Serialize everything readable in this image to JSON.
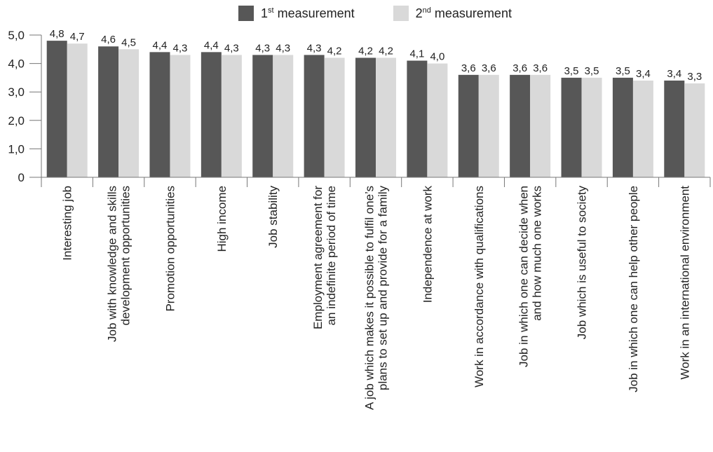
{
  "chart_data": {
    "type": "bar",
    "categories": [
      [
        "Interesting job"
      ],
      [
        "Job with knowledge and skills",
        "development opportunities"
      ],
      [
        "Promotion opportunities"
      ],
      [
        "High income"
      ],
      [
        "Job stability"
      ],
      [
        "Employment agreement for",
        "an indefinite period of time"
      ],
      [
        "A job which makes it possible to fulfil one’s",
        "plans to set up and provide for a family"
      ],
      [
        "Independence at work"
      ],
      [
        "Work in accordance with qualifications"
      ],
      [
        "Job in which one can decide when",
        "and how much one works"
      ],
      [
        "Job which is useful to society"
      ],
      [
        "Job in which one can help other people"
      ],
      [
        "Work in an international environment"
      ]
    ],
    "series": [
      {
        "name_parts": [
          "1",
          "st",
          " measurement"
        ],
        "color": "#575757",
        "values": [
          4.8,
          4.6,
          4.4,
          4.4,
          4.3,
          4.3,
          4.2,
          4.1,
          3.6,
          3.6,
          3.5,
          3.5,
          3.4
        ],
        "labels": [
          "4,8",
          "4,6",
          "4,4",
          "4,4",
          "4,3",
          "4,3",
          "4,2",
          "4,1",
          "3,6",
          "3,6",
          "3,5",
          "3,5",
          "3,4"
        ]
      },
      {
        "name_parts": [
          "2",
          "nd",
          " measurement"
        ],
        "color": "#d9d9d9",
        "values": [
          4.7,
          4.5,
          4.3,
          4.3,
          4.3,
          4.2,
          4.2,
          4.0,
          3.6,
          3.6,
          3.5,
          3.4,
          3.3
        ],
        "labels": [
          "4,7",
          "4,5",
          "4,3",
          "4,3",
          "4,3",
          "4,2",
          "4,2",
          "4,0",
          "3,6",
          "3,6",
          "3,5",
          "3,4",
          "3,3"
        ]
      }
    ],
    "yticks": [
      {
        "value": 0,
        "label": "0"
      },
      {
        "value": 1,
        "label": "1,0"
      },
      {
        "value": 2,
        "label": "2,0"
      },
      {
        "value": 3,
        "label": "3,0"
      },
      {
        "value": 4,
        "label": "4,0"
      },
      {
        "value": 5,
        "label": "5,0"
      }
    ],
    "ylim": [
      0,
      5
    ],
    "grid": false,
    "legend_position": "top-center"
  }
}
